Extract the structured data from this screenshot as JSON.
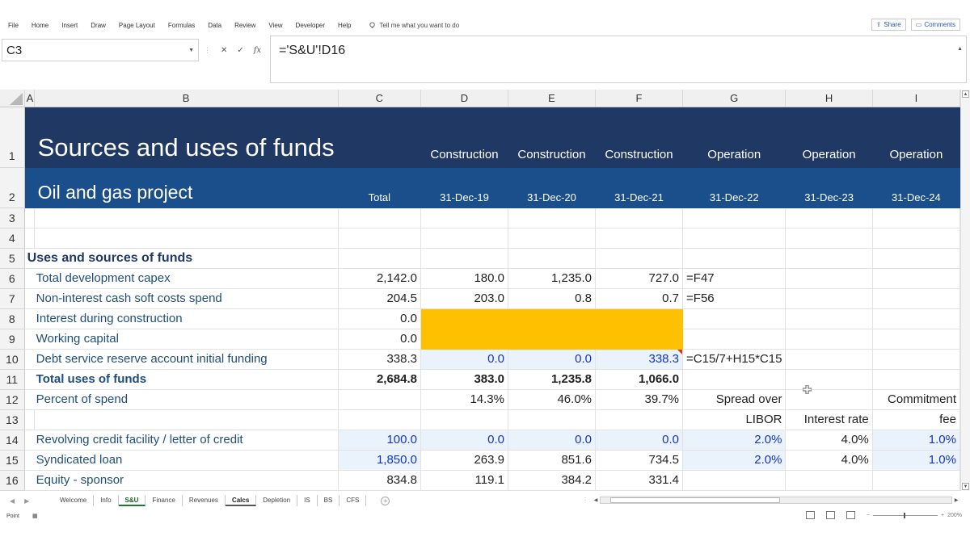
{
  "ribbon": {
    "tabs": [
      "File",
      "Home",
      "Insert",
      "Draw",
      "Page Layout",
      "Formulas",
      "Data",
      "Review",
      "View",
      "Developer",
      "Help"
    ],
    "tell_me": "Tell me what you want to do",
    "share": "Share",
    "comments": "Comments"
  },
  "formula_bar": {
    "name_box": "C3",
    "formula": "='S&U'!D16"
  },
  "columns": [
    "A",
    "B",
    "C",
    "D",
    "E",
    "F",
    "G",
    "H",
    "I"
  ],
  "sheet": {
    "title": "Sources and uses of funds",
    "subtitle": "Oil and gas project",
    "phases": [
      "Construction",
      "Construction",
      "Construction",
      "Operation",
      "Operation",
      "Operation"
    ],
    "total_label": "Total",
    "dates": [
      "31-Dec-19",
      "31-Dec-20",
      "31-Dec-21",
      "31-Dec-22",
      "31-Dec-23",
      "31-Dec-24"
    ],
    "section_label": "Uses and sources of funds",
    "rows": {
      "r6": {
        "label": "Total development capex",
        "total": "2,142.0",
        "d": "180.0",
        "e": "1,235.0",
        "f": "727.0",
        "g": "=F47"
      },
      "r7": {
        "label": "Non-interest cash soft costs spend",
        "total": "204.5",
        "d": "203.0",
        "e": "0.8",
        "f": "0.7",
        "g": "=F56"
      },
      "r8": {
        "label": "Interest during construction",
        "total": "0.0"
      },
      "r9": {
        "label": "Working capital",
        "total": "0.0"
      },
      "r10": {
        "label": "Debt service reserve account initial funding",
        "total": "338.3",
        "d": "0.0",
        "e": "0.0",
        "f": "338.3",
        "g": "=C15/7+H15*C15"
      },
      "r11": {
        "label": "Total uses of funds",
        "total": "2,684.8",
        "d": "383.0",
        "e": "1,235.8",
        "f": "1,066.0"
      },
      "r12": {
        "label": "Percent of spend",
        "d": "14.3%",
        "e": "46.0%",
        "f": "39.7%",
        "g": "Spread over",
        "i": "Commitment"
      },
      "r13": {
        "g": "LIBOR",
        "h": "Interest rate",
        "i": "fee"
      },
      "r14": {
        "label": "Revolving credit facility / letter of credit",
        "total": "100.0",
        "d": "0.0",
        "e": "0.0",
        "f": "0.0",
        "g": "2.0%",
        "h": "4.0%",
        "i": "1.0%"
      },
      "r15": {
        "label": "Syndicated loan",
        "total": "1,850.0",
        "d": "263.9",
        "e": "851.6",
        "f": "734.5",
        "g": "2.0%",
        "h": "4.0%",
        "i": "1.0%"
      },
      "r16": {
        "label": "Equity - sponsor",
        "total": "834.8",
        "d": "119.1",
        "e": "384.2",
        "f": "331.4"
      }
    }
  },
  "sheet_tabs": [
    "Welcome",
    "Info",
    "S&U",
    "Finance",
    "Revenues",
    "Calcs",
    "Depletion",
    "IS",
    "BS",
    "CFS"
  ],
  "status": {
    "mode": "Point",
    "zoom": "200%"
  },
  "colors": {
    "title_band": "#1f3864",
    "subtitle_band": "#1b4f8c",
    "highlight": "#ffc000",
    "input_fill": "#eaf2fb",
    "input_font": "#1433c8"
  }
}
